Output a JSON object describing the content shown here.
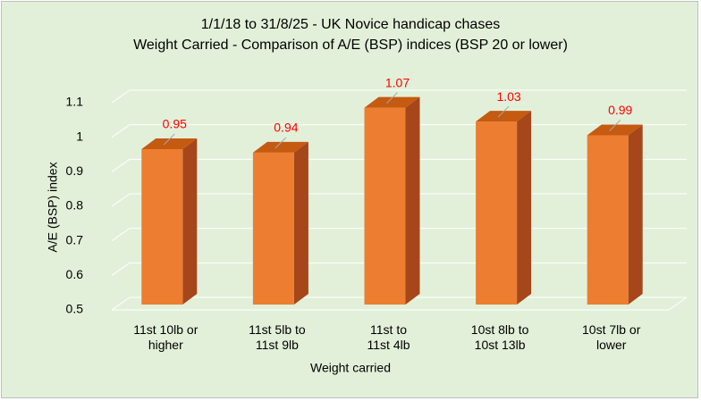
{
  "chart_data": {
    "type": "bar3d",
    "title": "1/1/18 to 31/8/25 - UK Novice handicap chases",
    "subtitle": "Weight Carried - Comparison of A/E (BSP) indices (BSP 20 or lower)",
    "x_label": "Weight carried",
    "y_label": "A/E (BSP) index",
    "categories": [
      "11st 10lb or\nhigher",
      "11st 5lb to\n11st 9lb",
      "11st to\n11st 4lb",
      "10st 8lb to\n10st 13lb",
      "10st 7lb or\nlower"
    ],
    "values": [
      0.95,
      0.94,
      1.07,
      1.03,
      0.99
    ],
    "color": "#ed7d31",
    "label_color": "#ff0000",
    "ylim": [
      0.5,
      1.1
    ],
    "yticks": [
      0.5,
      0.6,
      0.7,
      0.8,
      0.9,
      1,
      1.1
    ],
    "grid": true
  }
}
